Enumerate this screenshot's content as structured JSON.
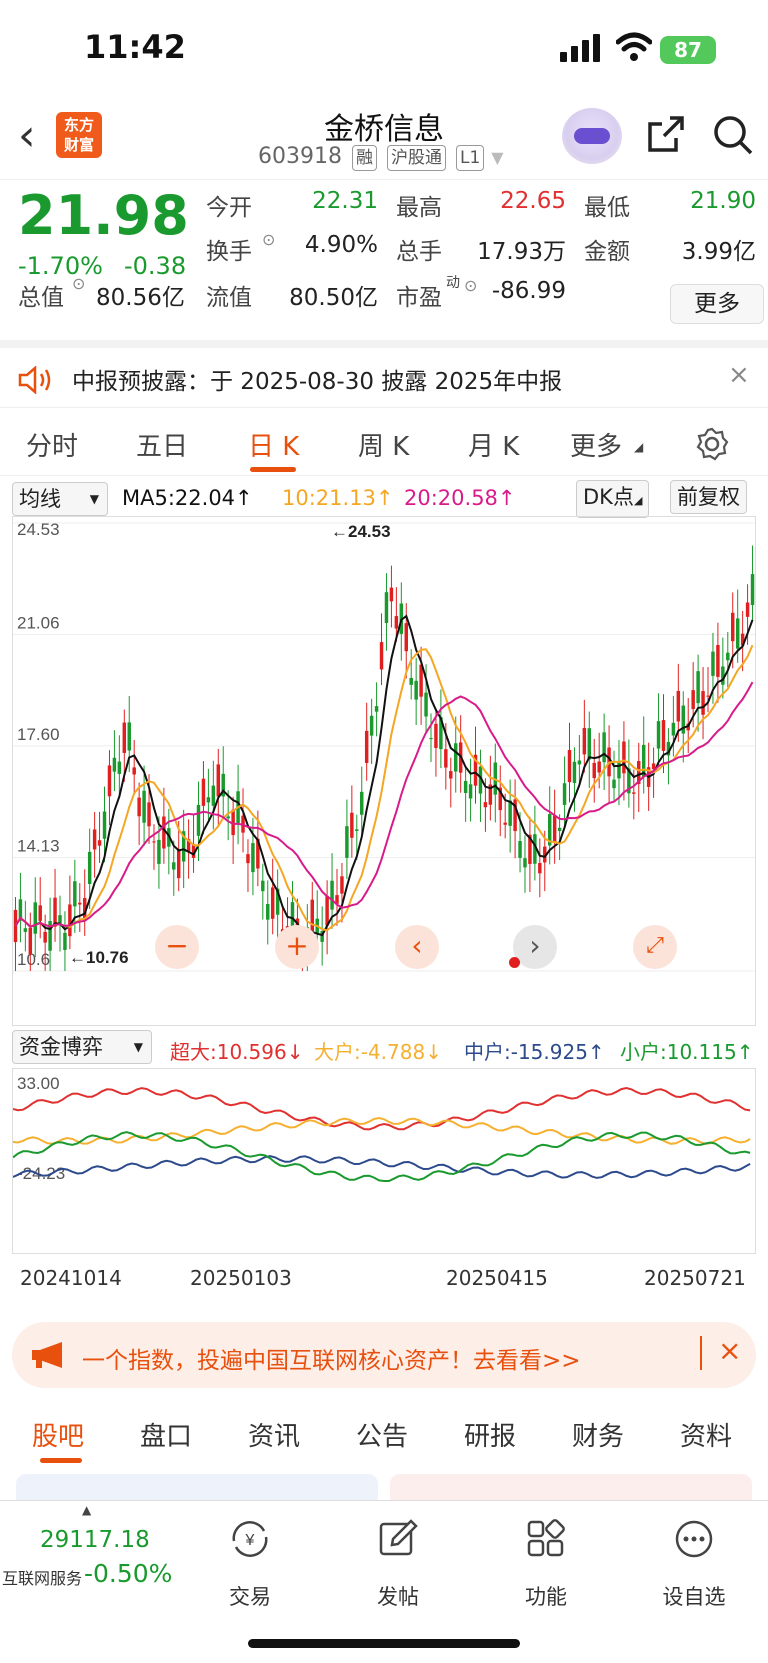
{
  "status": {
    "time": "11:42",
    "battery": "87"
  },
  "header": {
    "back": "‹",
    "logo_line1": "东方",
    "logo_line2": "财富",
    "title": "金桥信息",
    "code": "603918",
    "tags": [
      "融",
      "沪股通",
      "L1"
    ]
  },
  "quote": {
    "price": "21.98",
    "pct": "-1.70%",
    "chg": "-0.38",
    "row1": [
      {
        "label": "今开",
        "value": "22.31",
        "color": "g"
      },
      {
        "label": "最高",
        "value": "22.65",
        "color": "r"
      },
      {
        "label": "最低",
        "value": "21.90",
        "color": "g"
      }
    ],
    "row2": [
      {
        "label": "换手",
        "value": "4.90%",
        "color": ""
      },
      {
        "label": "总手",
        "value": "17.93万",
        "color": ""
      },
      {
        "label": "金额",
        "value": "3.99亿",
        "color": ""
      }
    ],
    "row3": [
      {
        "label": "总值",
        "value": "80.56亿"
      },
      {
        "label": "流值",
        "value": "80.50亿"
      },
      {
        "label": "市盈",
        "sup": "动",
        "value": "-86.99"
      }
    ],
    "more": "更多"
  },
  "notice": {
    "text": "中报预披露：于 2025-08-30 披露 2025年中报"
  },
  "tabs": [
    "分时",
    "五日",
    "日 K",
    "周 K",
    "月 K",
    "更多"
  ],
  "indicator": {
    "select": "均线",
    "ma5": "MA5:22.04↑",
    "ma10": "10:21.13↑",
    "ma20": "20:20.58↑",
    "dk": "DK点",
    "adj": "前复权"
  },
  "chart_data": {
    "type": "candlestick",
    "ylabels": [
      "24.53",
      "21.06",
      "17.60",
      "14.13",
      "10.6"
    ],
    "high_label": "←24.53",
    "low_label": "←10.76",
    "ylim": [
      10.6,
      24.53
    ],
    "x_ticks": [
      "20241014",
      "20250103",
      "20250415",
      "20250721"
    ],
    "fund": {
      "ylabels": [
        "33.00",
        "-24.23"
      ],
      "series": [
        {
          "name": "超大",
          "value": "超大:10.596↓",
          "color": "#e03030"
        },
        {
          "name": "大户",
          "value": "大户:-4.788↓",
          "color": "#f5b030"
        },
        {
          "name": "中户",
          "value": "中户:-15.925↑",
          "color": "#2c4a8c"
        },
        {
          "name": "小户",
          "value": "小户:10.115↑",
          "color": "#1a9a2e"
        }
      ]
    }
  },
  "fund_select": "资金博弈",
  "ad": {
    "text": "一个指数，投遍中国互联网核心资产！去看看>>"
  },
  "btabs": [
    "股吧",
    "盘口",
    "资讯",
    "公告",
    "研报",
    "财务",
    "资料"
  ],
  "bottom": {
    "index_value": "29117.18",
    "index_name": "互联网服务",
    "index_pct": "-0.50%",
    "items": [
      "交易",
      "发帖",
      "功能",
      "设自选"
    ]
  }
}
